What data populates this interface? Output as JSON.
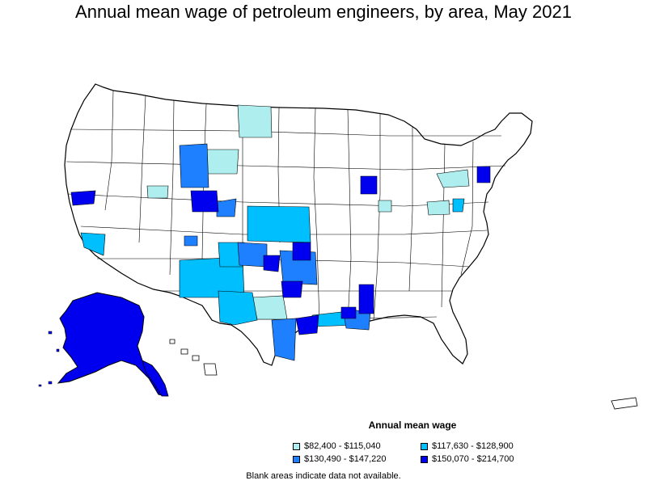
{
  "title": "Annual mean wage of petroleum engineers, by area, May 2021",
  "legend": {
    "title": "Annual mean wage",
    "items": [
      {
        "label": "$82,400 - $115,040",
        "color": "#aeeeee"
      },
      {
        "label": "$117,630 - $128,900",
        "color": "#00bfff"
      },
      {
        "label": "$130,490 - $147,220",
        "color": "#1e7fff"
      },
      {
        "label": "$150,070 - $214,700",
        "color": "#0000ee"
      }
    ]
  },
  "note": "Blank areas indicate data not available.",
  "map": {
    "type": "choropleth",
    "region": "United States metropolitan and nonmetropolitan areas",
    "blank_color": "#ffffff",
    "border_color": "#000000"
  }
}
